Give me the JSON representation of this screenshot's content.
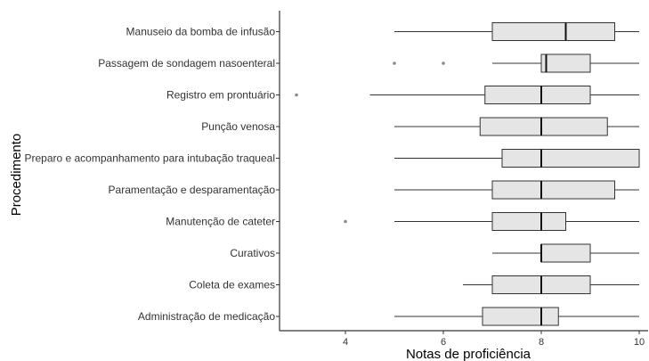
{
  "chart_data": {
    "type": "boxplot",
    "orientation": "horizontal",
    "xlabel": "Notas de proficiência",
    "ylabel": "Procedimento",
    "xlim": [
      2.3,
      10.2
    ],
    "x_ticks": [
      4,
      6,
      8,
      10
    ],
    "grid": false,
    "box_fill": "#e5e5e5",
    "categories": [
      {
        "label": "Manuseio da bomba de infusão",
        "min": 5,
        "q1": 7,
        "median": 8.5,
        "q3": 9.5,
        "max": 10,
        "outliers": []
      },
      {
        "label": "Passagem de sondagem nasoenteral",
        "min": 7,
        "q1": 8,
        "median": 8.1,
        "q3": 9,
        "max": 10,
        "outliers": [
          5,
          6
        ]
      },
      {
        "label": "Registro em prontuário",
        "min": 4.5,
        "q1": 6.85,
        "median": 8,
        "q3": 9,
        "max": 10,
        "outliers": [
          3
        ]
      },
      {
        "label": "Punção venosa",
        "min": 5,
        "q1": 6.75,
        "median": 8,
        "q3": 9.35,
        "max": 10,
        "outliers": []
      },
      {
        "label": "Preparo e acompanhamento para intubação traqueal",
        "min": 5,
        "q1": 7.2,
        "median": 8,
        "q3": 10,
        "max": 10,
        "outliers": []
      },
      {
        "label": "Paramentação e desparamentação",
        "min": 5,
        "q1": 7,
        "median": 8,
        "q3": 9.5,
        "max": 10,
        "outliers": []
      },
      {
        "label": "Manutenção de cateter",
        "min": 5,
        "q1": 7,
        "median": 8,
        "q3": 8.5,
        "max": 10,
        "outliers": [
          4
        ]
      },
      {
        "label": "Curativos",
        "min": 7,
        "q1": 8,
        "median": 8,
        "q3": 9,
        "max": 10,
        "outliers": []
      },
      {
        "label": "Coleta de exames",
        "min": 6.4,
        "q1": 7,
        "median": 8,
        "q3": 9,
        "max": 10,
        "outliers": []
      },
      {
        "label": "Administração de medicação",
        "min": 5,
        "q1": 6.8,
        "median": 8,
        "q3": 8.35,
        "max": 10,
        "outliers": []
      }
    ]
  }
}
